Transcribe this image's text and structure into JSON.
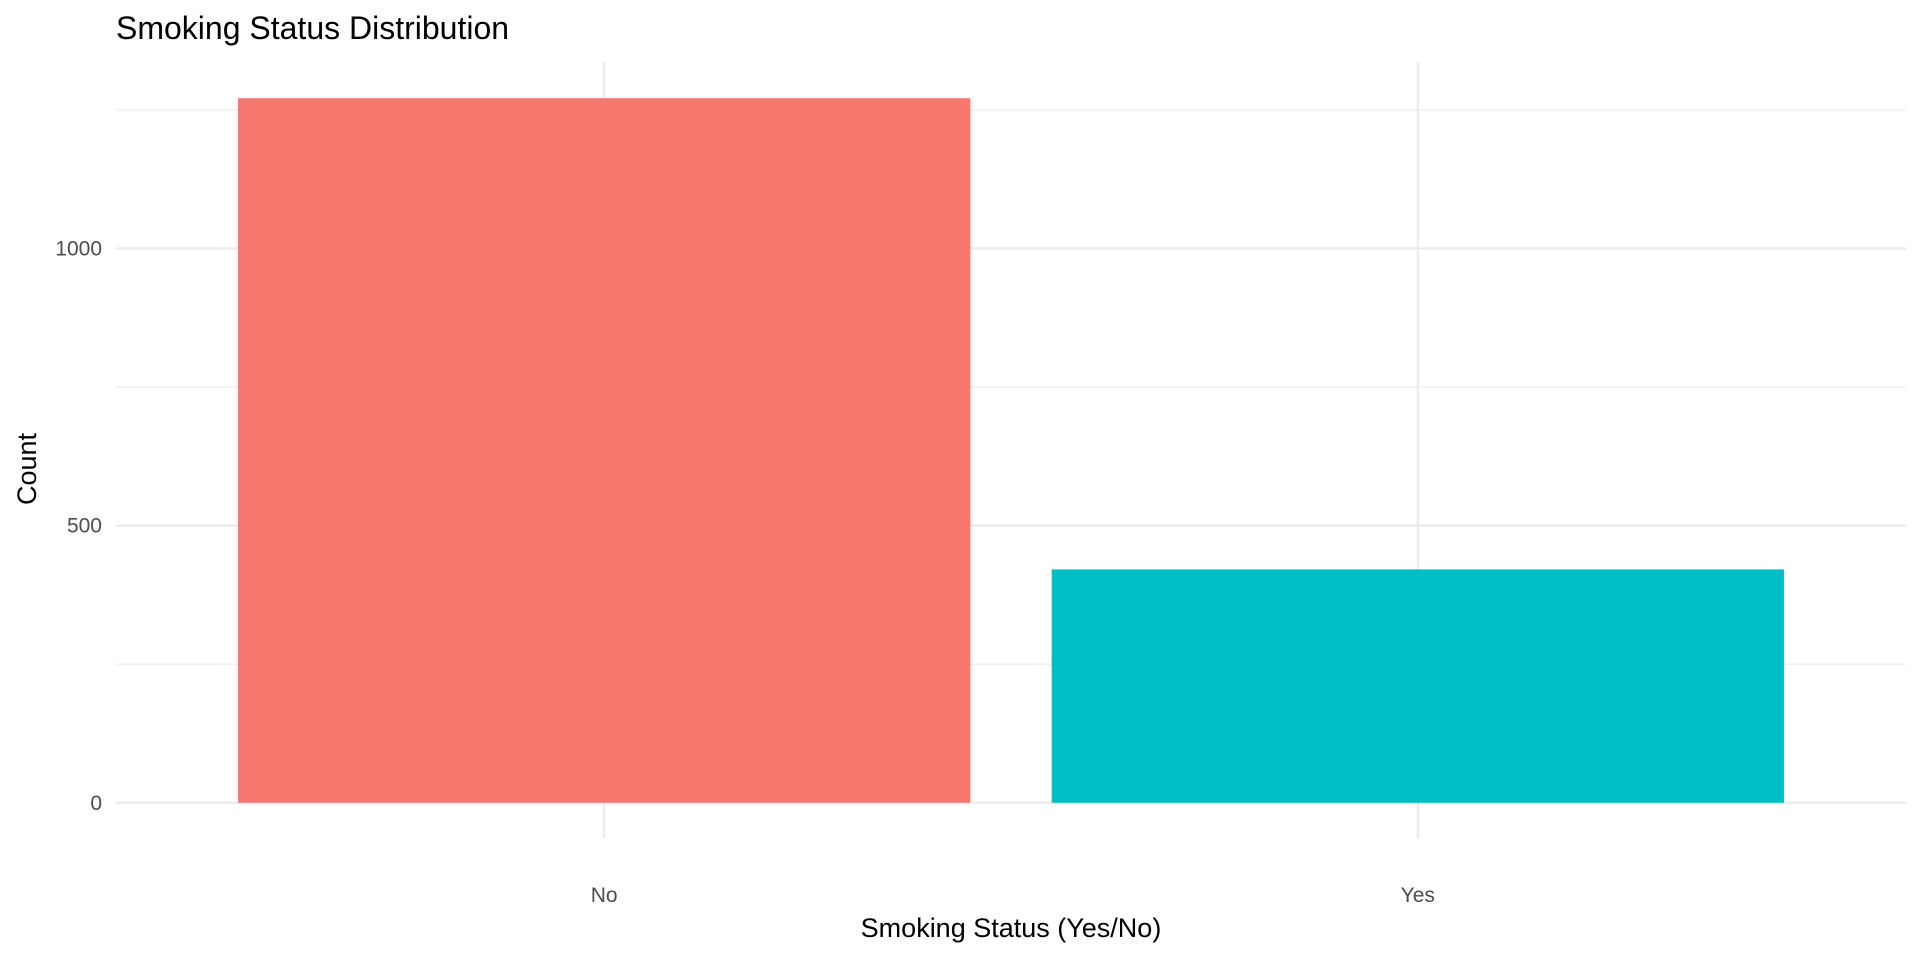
{
  "chart_data": {
    "type": "bar",
    "title": "Smoking Status Distribution",
    "xlabel": "Smoking Status (Yes/No)",
    "ylabel": "Count",
    "categories": [
      "No",
      "Yes"
    ],
    "values": [
      1271,
      421
    ],
    "colors": [
      "#F8766D",
      "#00BFC4"
    ],
    "ylim": [
      0,
      1271
    ],
    "yticks": [
      0,
      500,
      1000
    ],
    "yticks_minor": [
      250,
      750,
      1250
    ],
    "grid": true,
    "legend": "none"
  }
}
